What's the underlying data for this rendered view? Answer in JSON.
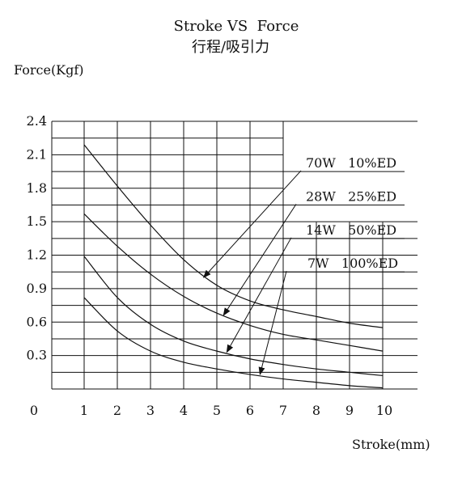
{
  "chart_data": {
    "type": "line",
    "title": "Stroke VS  Force",
    "subtitle": "行程/吸引力",
    "ylabel": "Force(Kgf)",
    "xlabel": "Stroke(mm)",
    "origin_label": "0",
    "xlim": [
      0,
      10
    ],
    "ylim": [
      0,
      2.4
    ],
    "grid": true,
    "x_ticks": [
      "1",
      "2",
      "3",
      "4",
      "5",
      "6",
      "7",
      "8",
      "9",
      "10"
    ],
    "x_tick_values": [
      1,
      2,
      3,
      4,
      5,
      6,
      7,
      8,
      9,
      10
    ],
    "y_ticks": [
      "0.3",
      "0.6",
      "0.9",
      "1.2",
      "1.5",
      "1.8",
      "2.1",
      "2.4"
    ],
    "y_tick_values": [
      0.3,
      0.6,
      0.9,
      1.2,
      1.5,
      1.8,
      2.1,
      2.4
    ],
    "series": [
      {
        "name": "70W   10%ED",
        "x": [
          1,
          2,
          3,
          4,
          5,
          6,
          7,
          8,
          9,
          10
        ],
        "y": [
          2.19,
          1.82,
          1.47,
          1.16,
          0.93,
          0.79,
          0.71,
          0.65,
          0.59,
          0.55
        ],
        "arrow_to": [
          4.6,
          1.0
        ]
      },
      {
        "name": "28W   25%ED",
        "x": [
          1,
          2,
          3,
          4,
          5,
          6,
          7,
          8,
          9,
          10
        ],
        "y": [
          1.57,
          1.28,
          1.03,
          0.83,
          0.68,
          0.57,
          0.49,
          0.44,
          0.39,
          0.34
        ],
        "arrow_to": [
          5.2,
          0.66
        ]
      },
      {
        "name": "14W   50%ED",
        "x": [
          1,
          2,
          3,
          4,
          5,
          6,
          7,
          8,
          9,
          10
        ],
        "y": [
          1.19,
          0.82,
          0.58,
          0.43,
          0.34,
          0.27,
          0.22,
          0.18,
          0.15,
          0.12
        ],
        "arrow_to": [
          5.3,
          0.33
        ]
      },
      {
        "name": "7W   100%ED",
        "x": [
          1,
          2,
          3,
          4,
          5,
          6,
          7,
          8,
          9,
          10
        ],
        "y": [
          0.82,
          0.52,
          0.34,
          0.24,
          0.18,
          0.13,
          0.09,
          0.06,
          0.03,
          0.01
        ],
        "arrow_to": [
          6.3,
          0.13
        ]
      }
    ]
  }
}
